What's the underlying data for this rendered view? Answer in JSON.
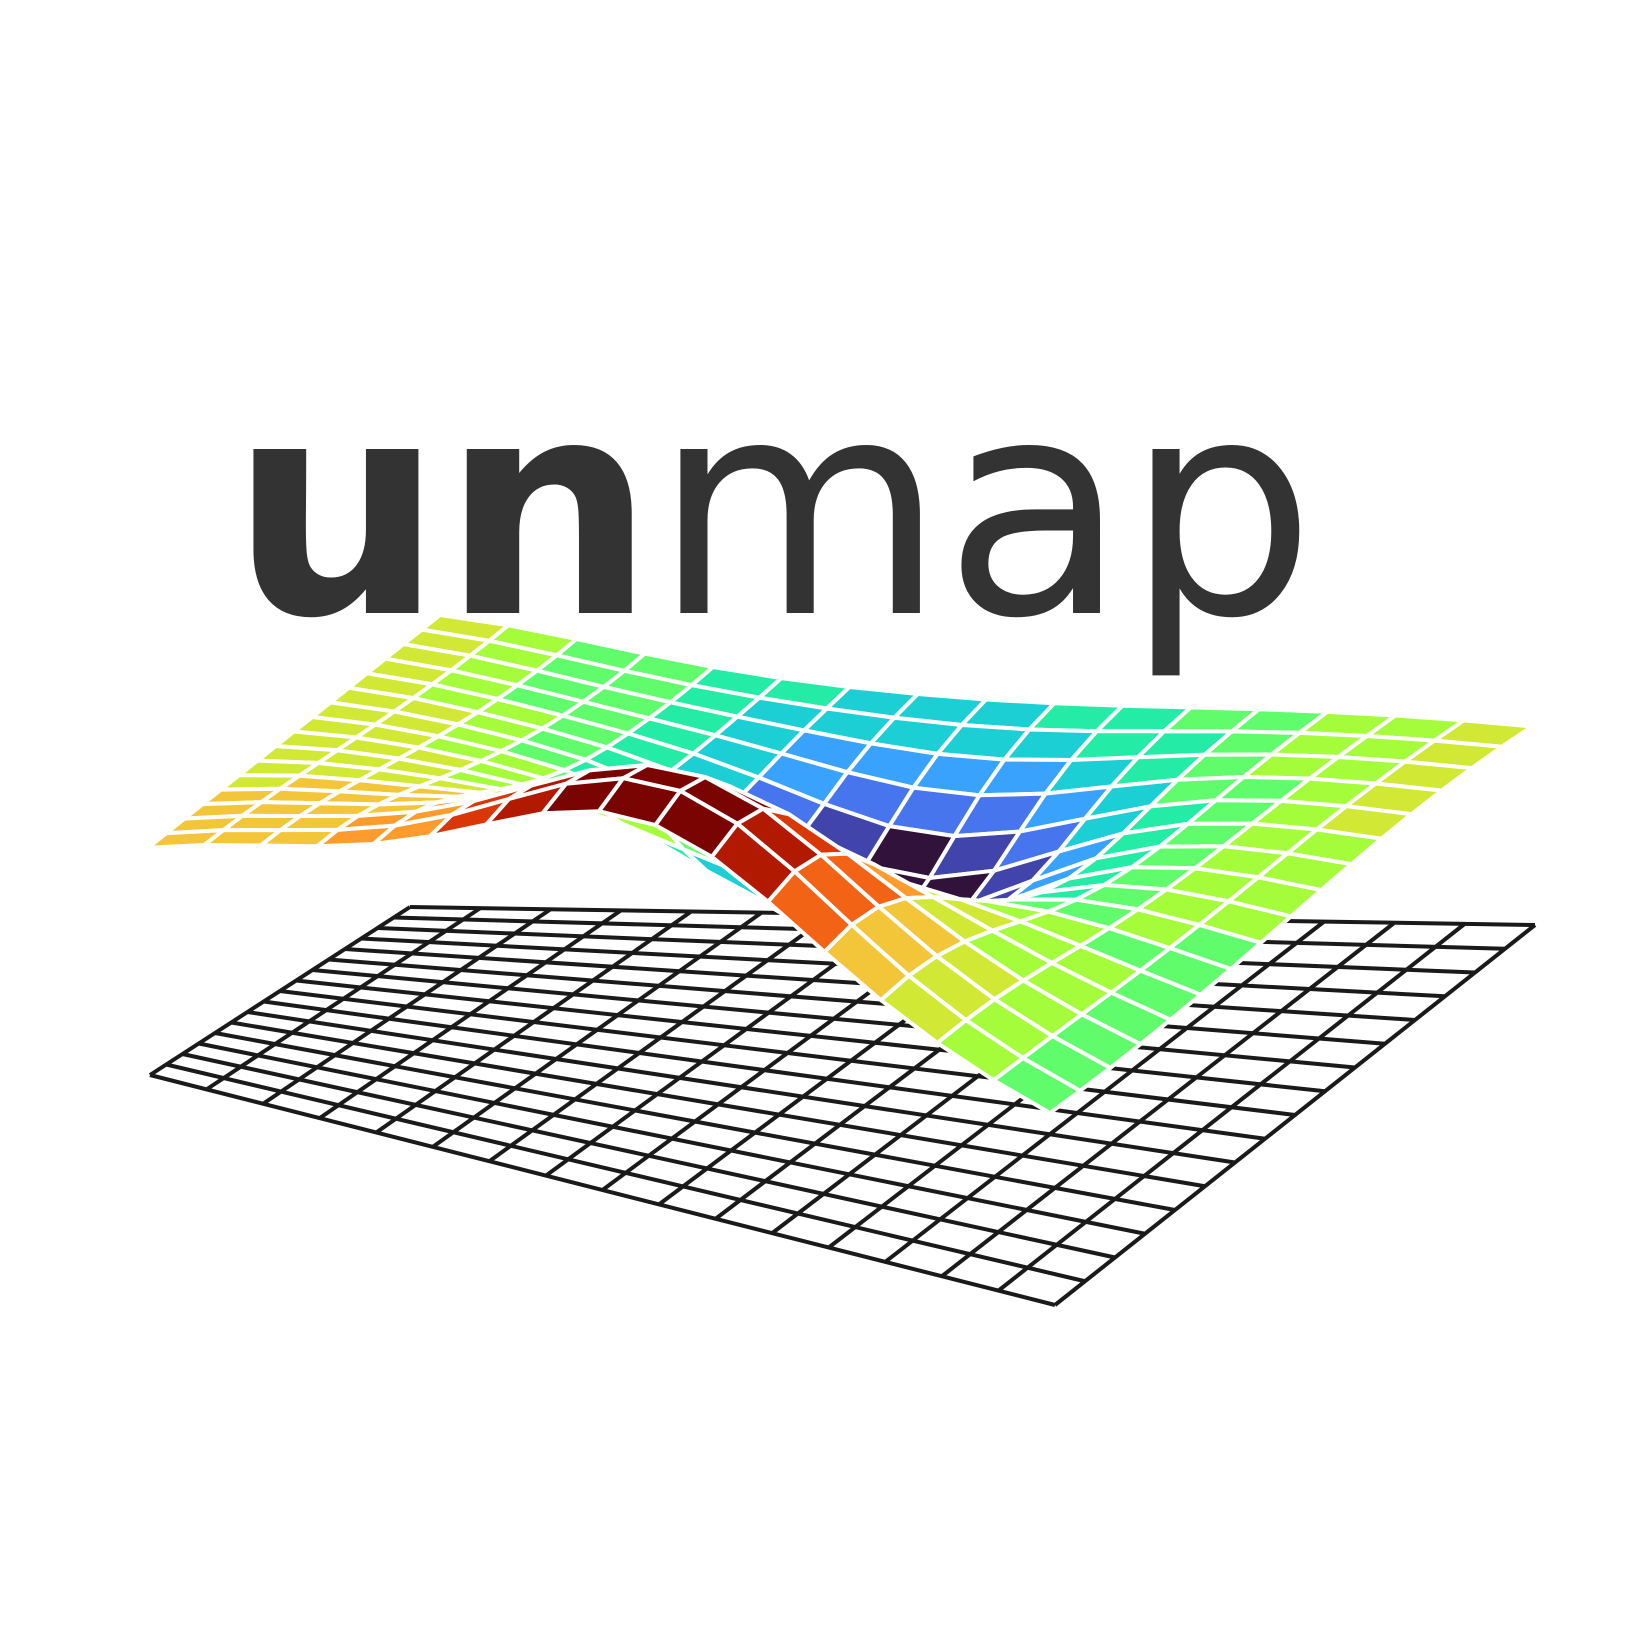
{
  "logo": {
    "wordmark_bold": "un",
    "wordmark_regular": "map",
    "text_color": "#333333",
    "background_color": "#ffffff",
    "grid_line_color": "#1a1a1a",
    "mesh_line_color": "#ffffff",
    "colormap": [
      "#30123b",
      "#4145ab",
      "#4675ed",
      "#39a2fc",
      "#1bcfd4",
      "#24eca6",
      "#61fc6c",
      "#a4fc3b",
      "#d1e834",
      "#f3c63a",
      "#fe9b2d",
      "#f36315",
      "#d93806",
      "#b11901",
      "#7a0402"
    ]
  }
}
